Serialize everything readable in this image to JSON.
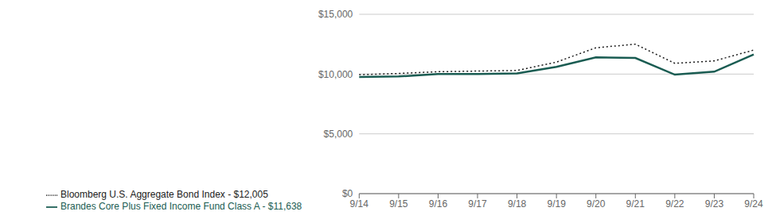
{
  "chart_data": {
    "type": "line",
    "categories": [
      "9/14",
      "9/15",
      "9/16",
      "9/17",
      "9/18",
      "9/19",
      "9/20",
      "9/21",
      "9/22",
      "9/23",
      "9/24"
    ],
    "series": [
      {
        "name": "Brandes Core Plus Fixed Income Fund Class A - $11,638",
        "color": "#1a5c52",
        "line_style": "solid",
        "values": [
          9750,
          9800,
          10000,
          10000,
          10050,
          10600,
          11400,
          11350,
          9950,
          10200,
          11638
        ]
      },
      {
        "name": "Bloomberg U.S. Aggregate Bond Index - $12,005",
        "color": "#1a1a1a",
        "line_style": "dotted",
        "values": [
          9950,
          10050,
          10200,
          10250,
          10300,
          11000,
          12200,
          12500,
          10900,
          11100,
          12005
        ]
      }
    ],
    "ylim": [
      0,
      15000
    ],
    "yticks": [
      {
        "value": 0,
        "label": "$0"
      },
      {
        "value": 5000,
        "label": "$5,000"
      },
      {
        "value": 10000,
        "label": "$10,000"
      },
      {
        "value": 15000,
        "label": "$15,000"
      }
    ],
    "grid": true,
    "legend": "lower left"
  }
}
